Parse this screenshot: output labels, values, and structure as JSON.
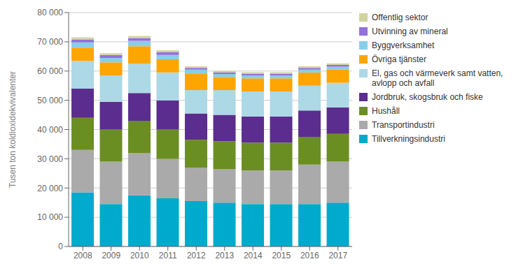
{
  "chart_data": {
    "type": "bar",
    "stacked": true,
    "grid": true,
    "legend": "right",
    "ylabel": "Tusen ton koldioxidekvivalenter",
    "categories": [
      "2008",
      "2009",
      "2010",
      "2011",
      "2012",
      "2013",
      "2014",
      "2015",
      "2016",
      "2017"
    ],
    "ylim": [
      0,
      80000
    ],
    "yticks": [
      0,
      {
        "value": 10000,
        "label": "10 000"
      },
      {
        "value": 20000,
        "label": "20 000"
      },
      {
        "value": 30000,
        "label": "30 000"
      },
      {
        "value": 40000,
        "label": "40 000"
      },
      {
        "value": 50000,
        "label": "50 000"
      },
      {
        "value": 60000,
        "label": "60 000"
      },
      {
        "value": 70000,
        "label": "70 000"
      },
      {
        "value": 80000,
        "label": "80 000"
      }
    ],
    "series": [
      {
        "name": "Tillverkningsindustri",
        "color": "#00AACC",
        "values": [
          18500,
          14500,
          17500,
          16500,
          15500,
          15000,
          14500,
          14500,
          14500,
          15000
        ]
      },
      {
        "name": "Transportindustri",
        "color": "#AAAAAA",
        "values": [
          14500,
          14500,
          14500,
          13500,
          11500,
          11500,
          11500,
          11500,
          13500,
          14000
        ]
      },
      {
        "name": "Hushåll",
        "color": "#6B8E23",
        "values": [
          11000,
          11000,
          11000,
          10000,
          9500,
          9500,
          9500,
          9500,
          9500,
          9500
        ]
      },
      {
        "name": "Jordbruk, skogsbruk och fiske",
        "color": "#5B2D8E",
        "values": [
          10000,
          9500,
          9500,
          10000,
          9000,
          9000,
          9000,
          9000,
          9000,
          9000
        ]
      },
      {
        "name": "El, gas och värmeverk samt vatten,\navlopp och avfall",
        "color": "#ADD8E6",
        "values": [
          9500,
          9000,
          10000,
          9500,
          8000,
          8500,
          8500,
          8500,
          8500,
          8500
        ]
      },
      {
        "name": "Övriga tjänster",
        "color": "#FFA500",
        "values": [
          4500,
          4500,
          6000,
          4500,
          5500,
          4500,
          4500,
          4500,
          4500,
          4500
        ]
      },
      {
        "name": "Byggverksamhet",
        "color": "#87CEEB",
        "values": [
          1800,
          1500,
          1800,
          1500,
          1500,
          1000,
          1000,
          1000,
          1000,
          1000
        ]
      },
      {
        "name": "Utvinning av mineral",
        "color": "#9370DB",
        "values": [
          1000,
          1000,
          1000,
          1000,
          600,
          600,
          600,
          600,
          600,
          600
        ]
      },
      {
        "name": "Offentlig sektor",
        "color": "#D2D4A0",
        "values": [
          700,
          600,
          700,
          600,
          500,
          500,
          500,
          500,
          500,
          500
        ]
      }
    ]
  }
}
